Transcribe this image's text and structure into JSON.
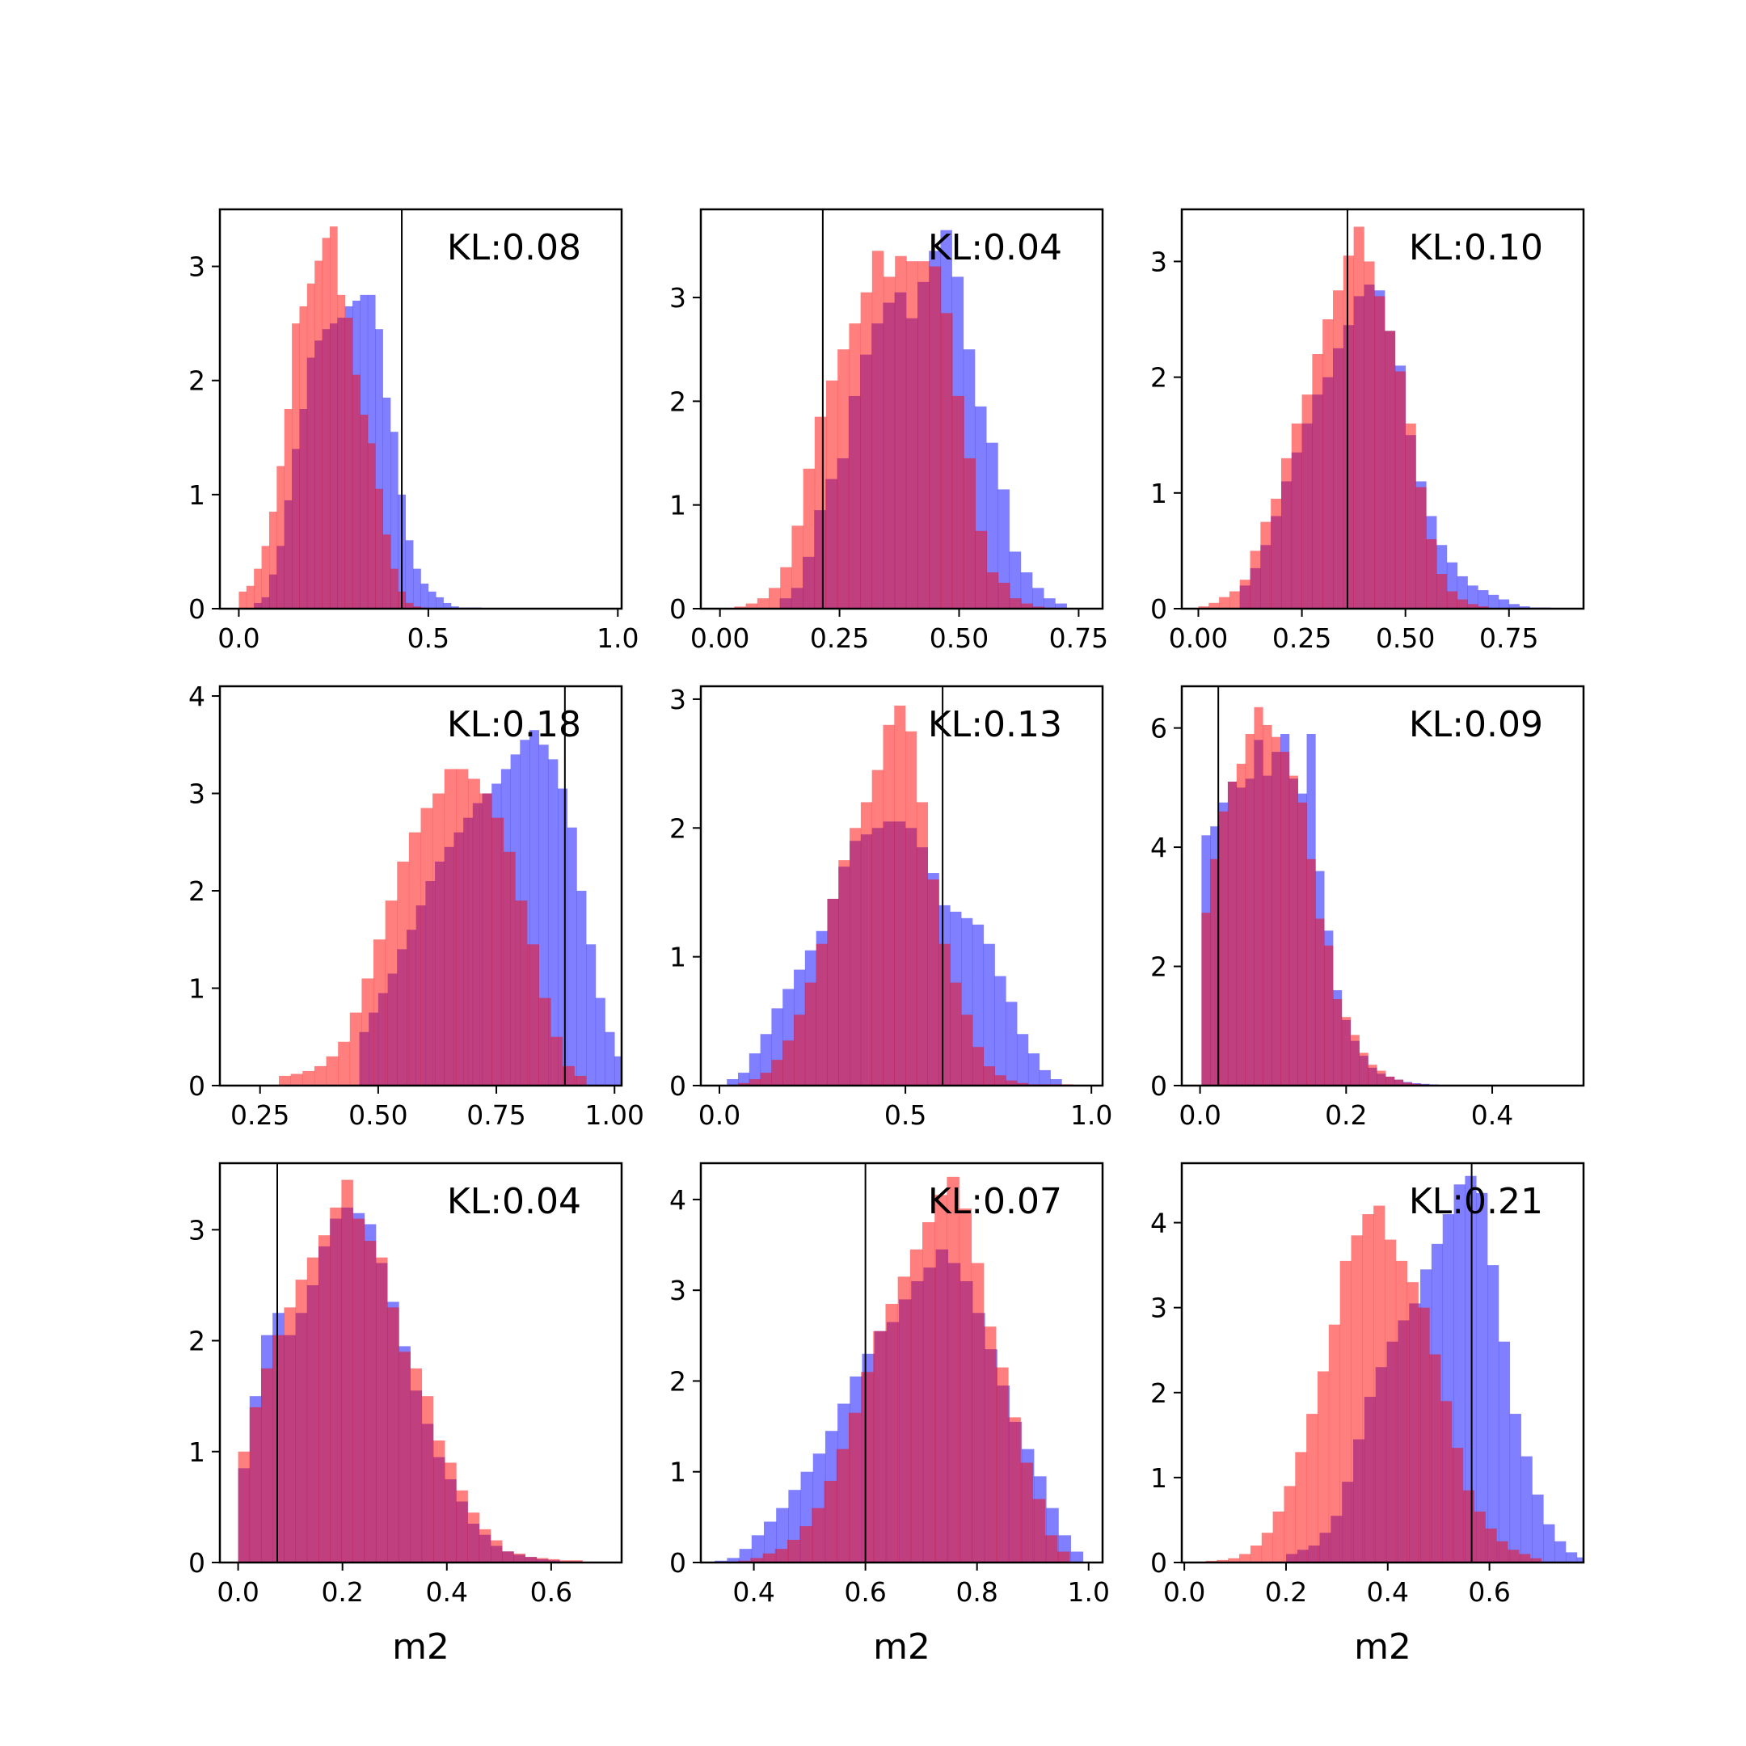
{
  "colors": {
    "prior": "#ff0000",
    "posterior": "#0000ff",
    "truth_line": "#000000"
  },
  "chart_data": [
    {
      "type": "histogram",
      "kl_label": "KL:0.08",
      "xlabel": "",
      "xlim": [
        -0.05,
        1.01
      ],
      "ylim": [
        0,
        3.5
      ],
      "xticks": [
        0.0,
        0.5,
        1.0
      ],
      "xtick_labels": [
        "0.0",
        "0.5",
        "1.0"
      ],
      "yticks": [
        0,
        1,
        2,
        3
      ],
      "ytick_labels": [
        "0",
        "1",
        "2",
        "3"
      ],
      "truth": 0.43,
      "series": [
        {
          "color": "red",
          "start": 0.0,
          "width": 0.02,
          "values": [
            0.15,
            0.2,
            0.35,
            0.55,
            0.85,
            1.25,
            1.75,
            2.5,
            2.65,
            2.85,
            3.05,
            3.25,
            3.35,
            2.75,
            2.55,
            2.05,
            1.7,
            1.45,
            1.05,
            0.65,
            0.35,
            0.15,
            0.05,
            0.02,
            0.01
          ]
        },
        {
          "color": "blue",
          "start": 0.04,
          "width": 0.02,
          "values": [
            0.05,
            0.1,
            0.3,
            0.55,
            0.95,
            1.4,
            1.75,
            2.2,
            2.35,
            2.45,
            2.5,
            2.55,
            2.65,
            2.7,
            2.75,
            2.75,
            2.45,
            1.85,
            1.55,
            1.0,
            0.6,
            0.35,
            0.22,
            0.15,
            0.1,
            0.05,
            0.02,
            0.01,
            0.01,
            0.01
          ]
        }
      ]
    },
    {
      "type": "histogram",
      "kl_label": "KL:0.04",
      "xlabel": "",
      "xlim": [
        -0.04,
        0.8
      ],
      "ylim": [
        0,
        3.85
      ],
      "xticks": [
        0.0,
        0.25,
        0.5,
        0.75
      ],
      "xtick_labels": [
        "0.00",
        "0.25",
        "0.50",
        "0.75"
      ],
      "yticks": [
        0,
        1,
        2,
        3
      ],
      "ytick_labels": [
        "0",
        "1",
        "2",
        "3"
      ],
      "truth": 0.215,
      "series": [
        {
          "color": "red",
          "start": 0.03,
          "width": 0.024,
          "values": [
            0.02,
            0.05,
            0.1,
            0.2,
            0.4,
            0.8,
            1.35,
            1.85,
            2.2,
            2.5,
            2.75,
            3.05,
            3.45,
            3.2,
            3.4,
            3.35,
            3.35,
            3.3,
            2.85,
            2.05,
            1.45,
            0.75,
            0.35,
            0.25,
            0.1,
            0.05,
            0.02,
            0.01
          ]
        },
        {
          "color": "blue",
          "start": 0.125,
          "width": 0.024,
          "values": [
            0.1,
            0.2,
            0.5,
            0.95,
            1.25,
            1.45,
            2.05,
            2.45,
            2.75,
            2.95,
            3.05,
            2.8,
            3.15,
            3.45,
            3.65,
            3.2,
            2.5,
            1.95,
            1.6,
            1.15,
            0.55,
            0.35,
            0.2,
            0.1,
            0.05
          ]
        }
      ]
    },
    {
      "type": "histogram",
      "kl_label": "KL:0.10",
      "xlabel": "",
      "xlim": [
        -0.04,
        0.93
      ],
      "ylim": [
        0,
        3.45
      ],
      "xticks": [
        0.0,
        0.25,
        0.5,
        0.75
      ],
      "xtick_labels": [
        "0.00",
        "0.25",
        "0.50",
        "0.75"
      ],
      "yticks": [
        0,
        1,
        2,
        3
      ],
      "ytick_labels": [
        "0",
        "1",
        "2",
        "3"
      ],
      "truth": 0.36,
      "series": [
        {
          "color": "red",
          "start": 0.0,
          "width": 0.025,
          "values": [
            0.02,
            0.05,
            0.1,
            0.15,
            0.25,
            0.5,
            0.75,
            0.95,
            1.3,
            1.6,
            1.85,
            2.2,
            2.5,
            2.75,
            3.05,
            3.3,
            3.0,
            2.7,
            2.4,
            2.05,
            1.6,
            1.05,
            0.6,
            0.3,
            0.15,
            0.08,
            0.04,
            0.02
          ]
        },
        {
          "color": "blue",
          "start": 0.1,
          "width": 0.025,
          "values": [
            0.2,
            0.35,
            0.55,
            0.8,
            1.1,
            1.35,
            1.6,
            1.85,
            2.0,
            2.25,
            2.45,
            2.7,
            2.8,
            2.75,
            2.4,
            2.1,
            1.5,
            1.1,
            0.8,
            0.55,
            0.4,
            0.28,
            0.2,
            0.16,
            0.12,
            0.08,
            0.04,
            0.02,
            0.01,
            0.01
          ]
        }
      ]
    },
    {
      "type": "histogram",
      "kl_label": "KL:0.18",
      "xlabel": "",
      "xlim": [
        0.165,
        1.015
      ],
      "ylim": [
        0,
        4.1
      ],
      "xticks": [
        0.25,
        0.5,
        0.75,
        1.0
      ],
      "xtick_labels": [
        "0.25",
        "0.50",
        "0.75",
        "1.00"
      ],
      "yticks": [
        0,
        1,
        2,
        3,
        4
      ],
      "ytick_labels": [
        "0",
        "1",
        "2",
        "3",
        "4"
      ],
      "truth": 0.895,
      "series": [
        {
          "color": "red",
          "start": 0.29,
          "width": 0.025,
          "values": [
            0.1,
            0.12,
            0.15,
            0.2,
            0.3,
            0.45,
            0.75,
            1.1,
            1.5,
            1.9,
            2.3,
            2.6,
            2.85,
            3.0,
            3.25,
            3.25,
            3.15,
            3.0,
            2.75,
            2.4,
            1.9,
            1.45,
            0.9,
            0.5,
            0.2,
            0.1
          ]
        },
        {
          "color": "blue",
          "start": 0.46,
          "width": 0.02,
          "values": [
            0.55,
            0.75,
            0.95,
            1.15,
            1.4,
            1.6,
            1.85,
            2.1,
            2.3,
            2.45,
            2.6,
            2.75,
            2.9,
            3.0,
            3.1,
            3.25,
            3.4,
            3.55,
            3.65,
            3.5,
            3.35,
            3.05,
            2.65,
            2.0,
            1.45,
            0.9,
            0.55,
            0.3
          ]
        }
      ]
    },
    {
      "type": "histogram",
      "kl_label": "KL:0.13",
      "xlabel": "",
      "xlim": [
        -0.05,
        1.03
      ],
      "ylim": [
        0,
        3.1
      ],
      "xticks": [
        0.0,
        0.5,
        1.0
      ],
      "xtick_labels": [
        "0.0",
        "0.5",
        "1.0"
      ],
      "yticks": [
        0,
        1,
        2,
        3
      ],
      "ytick_labels": [
        "0",
        "1",
        "2",
        "3"
      ],
      "truth": 0.6,
      "series": [
        {
          "color": "red",
          "start": 0.05,
          "width": 0.03,
          "values": [
            0.02,
            0.05,
            0.1,
            0.2,
            0.35,
            0.55,
            0.8,
            1.1,
            1.45,
            1.75,
            2.0,
            2.2,
            2.45,
            2.8,
            2.95,
            2.75,
            2.2,
            1.6,
            1.1,
            0.8,
            0.55,
            0.3,
            0.15,
            0.08,
            0.04,
            0.02,
            0.01,
            0.01,
            0.01,
            0.01
          ]
        },
        {
          "color": "blue",
          "start": 0.02,
          "width": 0.03,
          "values": [
            0.05,
            0.1,
            0.25,
            0.4,
            0.6,
            0.75,
            0.9,
            1.05,
            1.2,
            1.45,
            1.7,
            1.9,
            1.95,
            2.0,
            2.05,
            2.05,
            2.0,
            1.85,
            1.65,
            1.4,
            1.35,
            1.3,
            1.25,
            1.1,
            0.85,
            0.65,
            0.4,
            0.25,
            0.12,
            0.05
          ]
        }
      ]
    },
    {
      "type": "histogram",
      "kl_label": "KL:0.09",
      "xlabel": "",
      "xlim": [
        -0.025,
        0.525
      ],
      "ylim": [
        0,
        6.7
      ],
      "xticks": [
        0.0,
        0.2,
        0.4
      ],
      "xtick_labels": [
        "0.0",
        "0.2",
        "0.4"
      ],
      "yticks": [
        0,
        2,
        4,
        6
      ],
      "ytick_labels": [
        "0",
        "2",
        "4",
        "6"
      ],
      "truth": 0.025,
      "series": [
        {
          "color": "red",
          "start": 0.002,
          "width": 0.012,
          "values": [
            2.9,
            3.8,
            4.6,
            5.1,
            5.4,
            5.9,
            6.35,
            6.05,
            5.85,
            5.6,
            5.2,
            4.75,
            3.8,
            2.8,
            2.35,
            1.45,
            1.15,
            0.85,
            0.55,
            0.35,
            0.25,
            0.15,
            0.1,
            0.05,
            0.03,
            0.02
          ]
        },
        {
          "color": "blue",
          "start": 0.002,
          "width": 0.012,
          "values": [
            4.2,
            4.35,
            4.75,
            5.1,
            5.0,
            5.15,
            5.8,
            5.2,
            5.6,
            5.9,
            5.15,
            4.9,
            5.9,
            3.6,
            2.6,
            1.6,
            1.1,
            0.75,
            0.5,
            0.3,
            0.2,
            0.15,
            0.1,
            0.06,
            0.04,
            0.03,
            0.02,
            0.01
          ]
        }
      ]
    },
    {
      "type": "histogram",
      "kl_label": "KL:0.04",
      "xlabel": "m2",
      "xlim": [
        -0.035,
        0.735
      ],
      "ylim": [
        0,
        3.6
      ],
      "xticks": [
        0.0,
        0.2,
        0.4,
        0.6
      ],
      "xtick_labels": [
        "0.0",
        "0.2",
        "0.4",
        "0.6"
      ],
      "yticks": [
        0,
        1,
        2,
        3
      ],
      "ytick_labels": [
        "0",
        "1",
        "2",
        "3"
      ],
      "truth": 0.075,
      "series": [
        {
          "color": "red",
          "start": 0.0,
          "width": 0.022,
          "values": [
            1.0,
            1.4,
            1.75,
            2.05,
            2.3,
            2.55,
            2.75,
            2.95,
            3.2,
            3.45,
            3.1,
            2.9,
            2.75,
            2.3,
            1.9,
            1.75,
            1.5,
            1.1,
            0.9,
            0.65,
            0.45,
            0.3,
            0.2,
            0.1,
            0.08,
            0.05,
            0.04,
            0.03,
            0.02,
            0.02
          ]
        },
        {
          "color": "blue",
          "start": 0.0,
          "width": 0.022,
          "values": [
            0.85,
            1.5,
            2.05,
            2.25,
            2.05,
            2.25,
            2.5,
            2.85,
            3.1,
            3.2,
            3.15,
            3.05,
            2.7,
            2.35,
            1.95,
            1.55,
            1.25,
            0.95,
            0.75,
            0.55,
            0.35,
            0.25,
            0.15,
            0.1,
            0.07,
            0.05,
            0.03,
            0.02,
            0.01,
            0.01
          ]
        }
      ]
    },
    {
      "type": "histogram",
      "kl_label": "KL:0.07",
      "xlabel": "m2",
      "xlim": [
        0.305,
        1.025
      ],
      "ylim": [
        0,
        4.4
      ],
      "xticks": [
        0.4,
        0.6,
        0.8,
        1.0
      ],
      "xtick_labels": [
        "0.4",
        "0.6",
        "0.8",
        "1.0"
      ],
      "yticks": [
        0,
        1,
        2,
        3,
        4
      ],
      "ytick_labels": [
        "0",
        "1",
        "2",
        "3",
        "4"
      ],
      "truth": 0.6,
      "series": [
        {
          "color": "red",
          "start": 0.35,
          "width": 0.022,
          "values": [
            0.01,
            0.02,
            0.05,
            0.1,
            0.15,
            0.25,
            0.4,
            0.6,
            0.9,
            1.25,
            1.65,
            2.1,
            2.55,
            2.85,
            3.15,
            3.45,
            3.75,
            4.05,
            4.25,
            3.9,
            3.3,
            2.6,
            2.15,
            1.6,
            1.1,
            0.7,
            0.3,
            0.12
          ]
        },
        {
          "color": "blue",
          "start": 0.33,
          "width": 0.022,
          "values": [
            0.02,
            0.05,
            0.15,
            0.3,
            0.45,
            0.6,
            0.8,
            1.0,
            1.2,
            1.45,
            1.75,
            2.05,
            2.3,
            2.55,
            2.65,
            2.9,
            3.1,
            3.25,
            3.45,
            3.3,
            3.1,
            2.75,
            2.35,
            1.95,
            1.55,
            1.25,
            0.95,
            0.6,
            0.3,
            0.12
          ]
        }
      ]
    },
    {
      "type": "histogram",
      "kl_label": "KL:0.21",
      "xlabel": "m2",
      "xlim": [
        -0.005,
        0.785
      ],
      "ylim": [
        0,
        4.7
      ],
      "xticks": [
        0.0,
        0.2,
        0.4,
        0.6
      ],
      "xtick_labels": [
        "0.0",
        "0.2",
        "0.4",
        "0.6"
      ],
      "yticks": [
        0,
        1,
        2,
        3,
        4
      ],
      "ytick_labels": [
        "0",
        "1",
        "2",
        "3",
        "4"
      ],
      "truth": 0.565,
      "series": [
        {
          "color": "red",
          "start": 0.02,
          "width": 0.022,
          "values": [
            0.01,
            0.02,
            0.03,
            0.05,
            0.1,
            0.2,
            0.35,
            0.6,
            0.9,
            1.3,
            1.75,
            2.25,
            2.8,
            3.55,
            3.85,
            4.1,
            4.2,
            3.8,
            3.55,
            3.3,
            3.0,
            2.45,
            1.9,
            1.35,
            0.85,
            0.6,
            0.4,
            0.25,
            0.15,
            0.1,
            0.05
          ]
        },
        {
          "color": "blue",
          "start": 0.2,
          "width": 0.022,
          "values": [
            0.1,
            0.15,
            0.2,
            0.35,
            0.55,
            0.95,
            1.45,
            1.95,
            2.3,
            2.6,
            2.85,
            3.05,
            3.45,
            3.75,
            4.1,
            4.45,
            4.55,
            4.35,
            3.5,
            2.6,
            1.75,
            1.25,
            0.8,
            0.45,
            0.25,
            0.12,
            0.06
          ]
        }
      ]
    }
  ]
}
